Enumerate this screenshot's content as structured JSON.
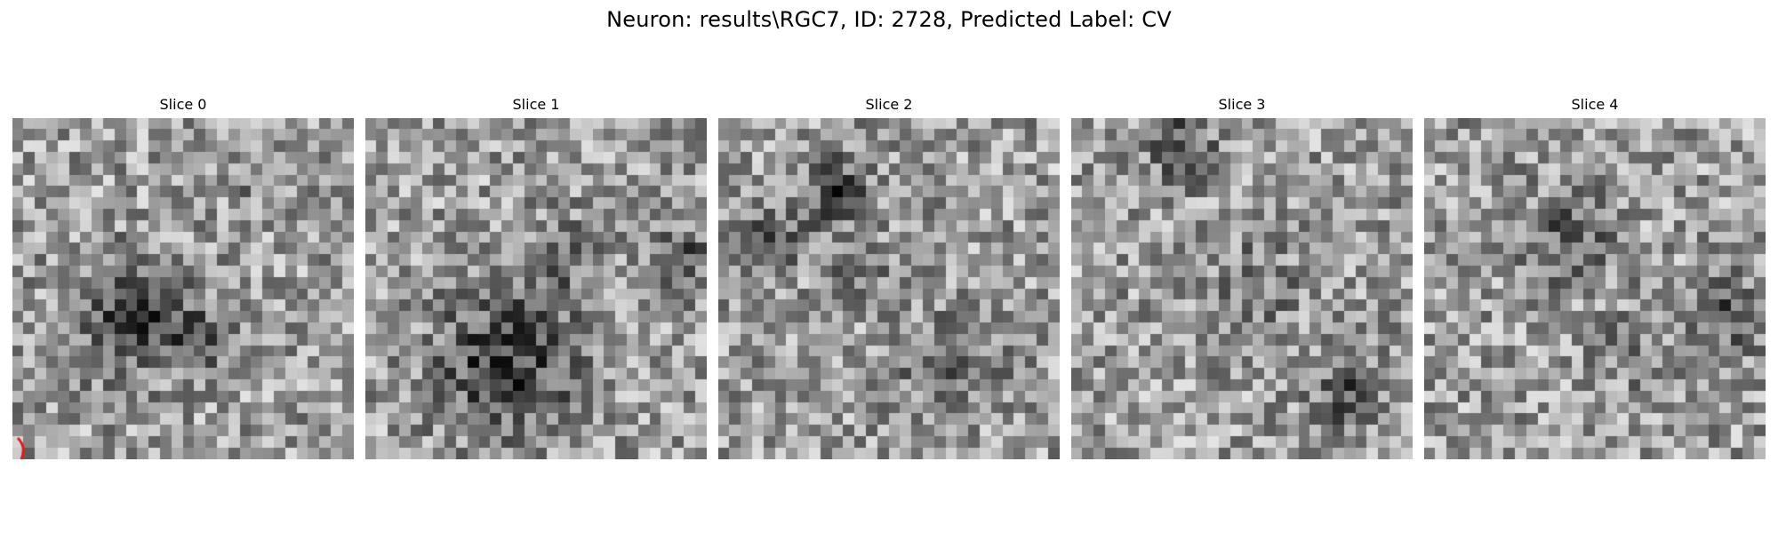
{
  "figure": {
    "title": "Neuron: results\\RGC7, ID: 2728, Predicted Label: CV"
  },
  "panels": [
    {
      "title": "Slice 0",
      "marker": true
    },
    {
      "title": "Slice 1",
      "marker": false
    },
    {
      "title": "Slice 2",
      "marker": false
    },
    {
      "title": "Slice 3",
      "marker": false
    },
    {
      "title": "Slice 4",
      "marker": false
    }
  ],
  "colors": {
    "colormap": "grayscale",
    "marker": "#e41a1c",
    "background": "#ffffff"
  }
}
